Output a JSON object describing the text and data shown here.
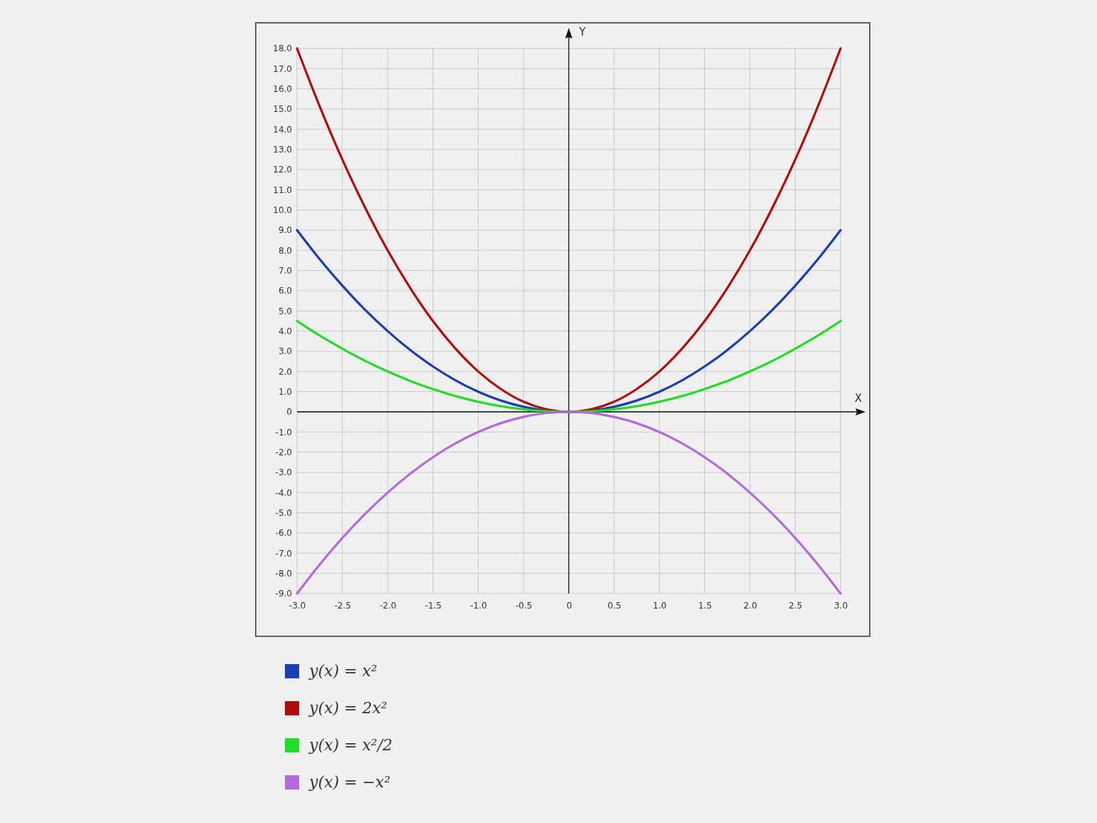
{
  "chart_data": {
    "type": "line",
    "xlabel": "X",
    "ylabel": "Y",
    "x": [
      -3,
      -2.75,
      -2.5,
      -2.25,
      -2,
      -1.75,
      -1.5,
      -1.25,
      -1,
      -0.75,
      -0.5,
      -0.25,
      0,
      0.25,
      0.5,
      0.75,
      1,
      1.25,
      1.5,
      1.75,
      2,
      2.25,
      2.5,
      2.75,
      3
    ],
    "series": [
      {
        "name": "y(x) = x²",
        "color": "#1a3eb0",
        "values": [
          9,
          7.56,
          6.25,
          5.06,
          4,
          3.06,
          2.25,
          1.56,
          1,
          0.56,
          0.25,
          0.06,
          0,
          0.06,
          0.25,
          0.56,
          1,
          1.56,
          2.25,
          3.06,
          4,
          5.06,
          6.25,
          7.56,
          9
        ]
      },
      {
        "name": "y(x) = 2x²",
        "color": "#b00c0c",
        "values": [
          18,
          15.13,
          12.5,
          10.13,
          8,
          6.13,
          4.5,
          3.13,
          2,
          1.13,
          0.5,
          0.13,
          0,
          0.13,
          0.5,
          1.13,
          2,
          3.13,
          4.5,
          6.13,
          8,
          10.13,
          12.5,
          15.13,
          18
        ]
      },
      {
        "name": "y(x) = x²/2",
        "color": "#22dd22",
        "values": [
          4.5,
          3.78,
          3.13,
          2.53,
          2,
          1.53,
          1.13,
          0.78,
          0.5,
          0.28,
          0.13,
          0.03,
          0,
          0.03,
          0.13,
          0.28,
          0.5,
          0.78,
          1.13,
          1.53,
          2,
          2.53,
          3.13,
          3.78,
          4.5
        ]
      },
      {
        "name": "y(x) = −x²",
        "color": "#b469dc",
        "values": [
          -9,
          -7.56,
          -6.25,
          -5.06,
          -4,
          -3.06,
          -2.25,
          -1.56,
          -1,
          -0.56,
          -0.25,
          -0.06,
          0,
          -0.06,
          -0.25,
          -0.56,
          -1,
          -1.56,
          -2.25,
          -3.06,
          -4,
          -5.06,
          -6.25,
          -7.56,
          -9
        ]
      }
    ],
    "xlim": [
      -3,
      3
    ],
    "xticks": [
      {
        "value": -3,
        "label": "-3.0"
      },
      -2.5,
      {
        "value": -2,
        "label": "-2.0"
      },
      -1.5,
      {
        "value": -1,
        "label": "-1.0"
      },
      -0.5,
      0,
      0.5,
      {
        "value": 1,
        "label": "1.0"
      },
      1.5,
      {
        "value": 2,
        "label": "2.0"
      },
      2.5,
      {
        "value": 3,
        "label": "3.0"
      }
    ],
    "ylim": [
      -9,
      18
    ],
    "yticks": [
      {
        "value": -9,
        "label": "-9.0"
      },
      {
        "value": -8,
        "label": "-8.0"
      },
      {
        "value": -7,
        "label": "-7.0"
      },
      {
        "value": -6,
        "label": "-6.0"
      },
      {
        "value": -5,
        "label": "-5.0"
      },
      {
        "value": -4,
        "label": "-4.0"
      },
      {
        "value": -3,
        "label": "-3.0"
      },
      {
        "value": -2,
        "label": "-2.0"
      },
      {
        "value": -1,
        "label": "-1.0"
      },
      0,
      {
        "value": 1,
        "label": "1.0"
      },
      {
        "value": 2,
        "label": "2.0"
      },
      {
        "value": 3,
        "label": "3.0"
      },
      {
        "value": 4,
        "label": "4.0"
      },
      {
        "value": 5,
        "label": "5.0"
      },
      {
        "value": 6,
        "label": "6.0"
      },
      {
        "value": 7,
        "label": "7.0"
      },
      {
        "value": 8,
        "label": "8.0"
      },
      {
        "value": 9,
        "label": "9.0"
      },
      {
        "value": 10,
        "label": "10.0"
      },
      {
        "value": 11,
        "label": "11.0"
      },
      {
        "value": 12,
        "label": "12.0"
      },
      {
        "value": 13,
        "label": "13.0"
      },
      {
        "value": 14,
        "label": "14.0"
      },
      {
        "value": 15,
        "label": "15.0"
      },
      {
        "value": 16,
        "label": "16.0"
      },
      {
        "value": 17,
        "label": "17.0"
      },
      {
        "value": 18,
        "label": "18.0"
      }
    ],
    "grid": true,
    "legend": "bottom left",
    "marker": "none",
    "line_style": "solid"
  }
}
